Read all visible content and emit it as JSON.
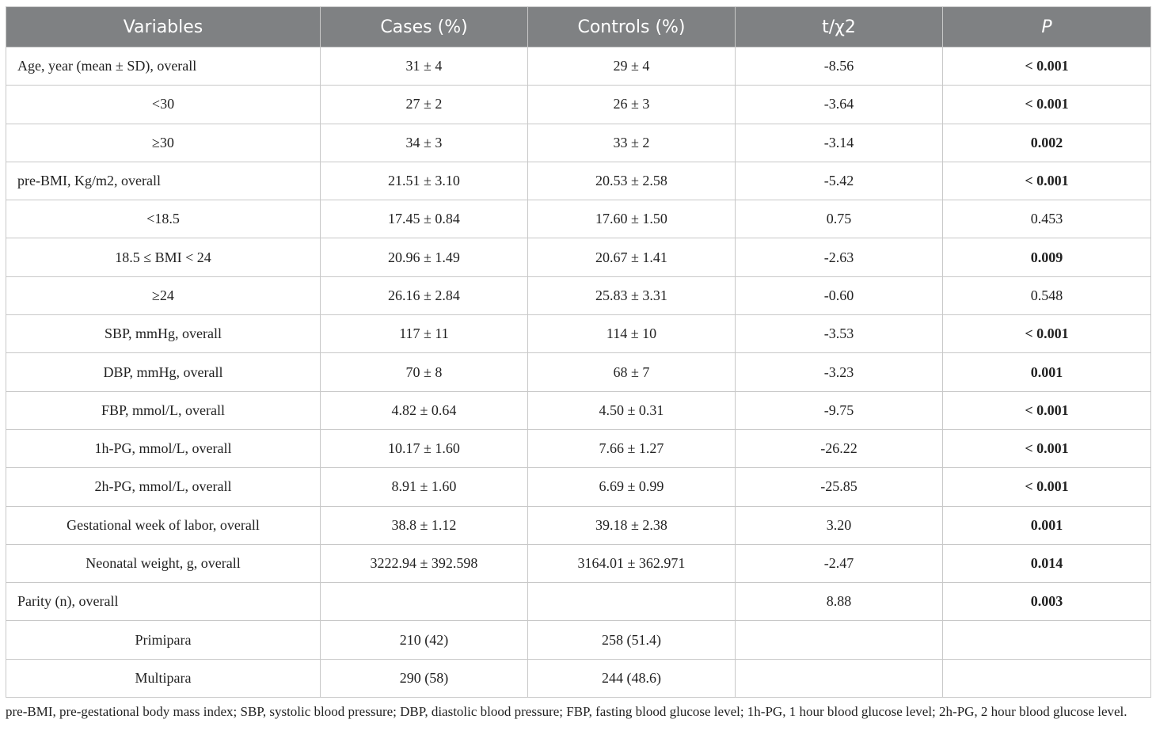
{
  "table": {
    "header": [
      "Variables",
      "Cases (%)",
      "Controls (%)",
      "t/χ2",
      "P"
    ],
    "rows": [
      {
        "cells": [
          "Age, year (mean ± SD), overall",
          "31 ± 4",
          "29 ± 4",
          "-8.56",
          "< 0.001"
        ],
        "p_bold": true,
        "left": true
      },
      {
        "cells": [
          "<30",
          "27 ± 2",
          "26 ± 3",
          "-3.64",
          "< 0.001"
        ],
        "p_bold": true,
        "left": false
      },
      {
        "cells": [
          "≥30",
          "34 ± 3",
          "33 ± 2",
          "-3.14",
          "0.002"
        ],
        "p_bold": true,
        "left": false
      },
      {
        "cells": [
          "pre-BMI, Kg/m2, overall",
          "21.51 ± 3.10",
          "20.53 ± 2.58",
          "-5.42",
          "< 0.001"
        ],
        "p_bold": true,
        "left": true
      },
      {
        "cells": [
          "<18.5",
          "17.45 ± 0.84",
          "17.60 ± 1.50",
          "0.75",
          "0.453"
        ],
        "p_bold": false,
        "left": false
      },
      {
        "cells": [
          "18.5 ≤ BMI < 24",
          "20.96 ± 1.49",
          "20.67 ± 1.41",
          "-2.63",
          "0.009"
        ],
        "p_bold": true,
        "left": false
      },
      {
        "cells": [
          "≥24",
          "26.16 ± 2.84",
          "25.83 ± 3.31",
          "-0.60",
          "0.548"
        ],
        "p_bold": false,
        "left": false
      },
      {
        "cells": [
          "SBP, mmHg, overall",
          "117 ± 11",
          "114 ± 10",
          "-3.53",
          "< 0.001"
        ],
        "p_bold": true,
        "left": false
      },
      {
        "cells": [
          "DBP, mmHg, overall",
          "70 ± 8",
          "68 ± 7",
          "-3.23",
          "0.001"
        ],
        "p_bold": true,
        "left": false
      },
      {
        "cells": [
          "FBP, mmol/L, overall",
          "4.82 ± 0.64",
          "4.50 ± 0.31",
          "-9.75",
          "< 0.001"
        ],
        "p_bold": true,
        "left": false
      },
      {
        "cells": [
          "1h-PG, mmol/L, overall",
          "10.17 ± 1.60",
          "7.66 ± 1.27",
          "-26.22",
          "< 0.001"
        ],
        "p_bold": true,
        "left": false
      },
      {
        "cells": [
          "2h-PG, mmol/L, overall",
          "8.91 ± 1.60",
          "6.69 ± 0.99",
          "-25.85",
          "< 0.001"
        ],
        "p_bold": true,
        "left": false
      },
      {
        "cells": [
          "Gestational week of labor, overall",
          "38.8 ± 1.12",
          "39.18 ± 2.38",
          "3.20",
          "0.001"
        ],
        "p_bold": true,
        "left": false
      },
      {
        "cells": [
          "Neonatal weight, g, overall",
          "3222.94 ± 392.598",
          "3164.01 ± 362.971",
          "-2.47",
          "0.014"
        ],
        "p_bold": true,
        "left": false
      },
      {
        "cells": [
          "Parity (n), overall",
          null,
          null,
          "8.88",
          "0.003"
        ],
        "p_bold": true,
        "left": true
      },
      {
        "cells": [
          "Primipara",
          "210 (42)",
          "258 (51.4)",
          null,
          null
        ],
        "p_bold": false,
        "left": false
      },
      {
        "cells": [
          "Multipara",
          "290 (58)",
          "244 (48.6)",
          null,
          null
        ],
        "p_bold": false,
        "left": false
      }
    ]
  },
  "footnote": "pre-BMI, pre-gestational body mass index; SBP, systolic blood pressure; DBP, diastolic blood pressure; FBP, fasting blood glucose level; 1h-PG, 1 hour blood glucose level; 2h-PG, 2 hour blood glucose level."
}
